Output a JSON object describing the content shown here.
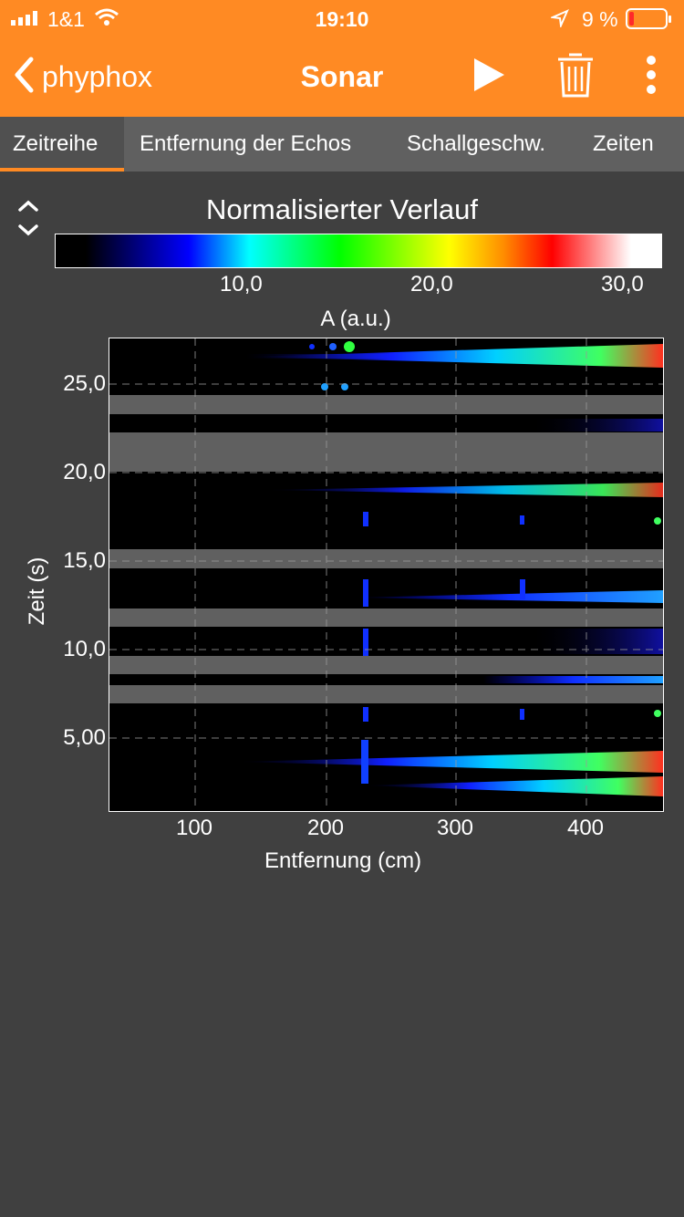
{
  "status": {
    "carrier": "1&1",
    "time": "19:10",
    "battery": "9 %"
  },
  "nav": {
    "back_label": "phyphox",
    "title": "Sonar",
    "icons": [
      "play-icon",
      "trash-icon",
      "more-icon"
    ]
  },
  "tabs": [
    {
      "label": "Zeitreihe",
      "active": true
    },
    {
      "label": "Entfernung der Echos",
      "active": false
    },
    {
      "label": "Schallgeschw.",
      "active": false
    },
    {
      "label": "Zeiten",
      "active": false
    }
  ],
  "graph": {
    "title": "Normalisierter Verlauf",
    "colorbar": {
      "label": "A (a.u.)",
      "ticks": [
        "10,0",
        "20,0",
        "30,0"
      ]
    },
    "x_ticks": [
      "100",
      "200",
      "300",
      "400"
    ],
    "y_ticks": [
      "25,0",
      "20,0",
      "15,0",
      "10,0",
      "5,00"
    ],
    "xlabel": "Entfernung (cm)",
    "ylabel": "Zeit (s)"
  },
  "colors": {
    "accent": "#ff8a23",
    "background": "#404040",
    "tab_bar": "#606060"
  }
}
